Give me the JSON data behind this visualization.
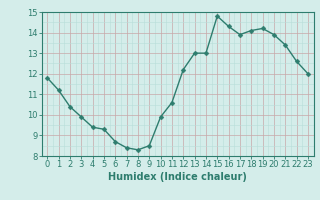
{
  "x": [
    0,
    1,
    2,
    3,
    4,
    5,
    6,
    7,
    8,
    9,
    10,
    11,
    12,
    13,
    14,
    15,
    16,
    17,
    18,
    19,
    20,
    21,
    22,
    23
  ],
  "y": [
    11.8,
    11.2,
    10.4,
    9.9,
    9.4,
    9.3,
    8.7,
    8.4,
    8.3,
    8.5,
    9.9,
    10.6,
    12.2,
    13.0,
    13.0,
    14.8,
    14.3,
    13.9,
    14.1,
    14.2,
    13.9,
    13.4,
    12.6,
    12.0
  ],
  "line_color": "#2e7d6e",
  "marker": "D",
  "marker_size": 2.5,
  "line_width": 1.0,
  "bg_color": "#d4edea",
  "grid_color_minor": "#b8ddd9",
  "grid_color_major": "#c8a8a8",
  "ylim": [
    8,
    15
  ],
  "xlim": [
    -0.5,
    23.5
  ],
  "yticks": [
    8,
    9,
    10,
    11,
    12,
    13,
    14,
    15
  ],
  "xticks": [
    0,
    1,
    2,
    3,
    4,
    5,
    6,
    7,
    8,
    9,
    10,
    11,
    12,
    13,
    14,
    15,
    16,
    17,
    18,
    19,
    20,
    21,
    22,
    23
  ],
  "xlabel": "Humidex (Indice chaleur)",
  "xlabel_fontsize": 7,
  "tick_fontsize": 6,
  "axis_color": "#2e7d6e"
}
